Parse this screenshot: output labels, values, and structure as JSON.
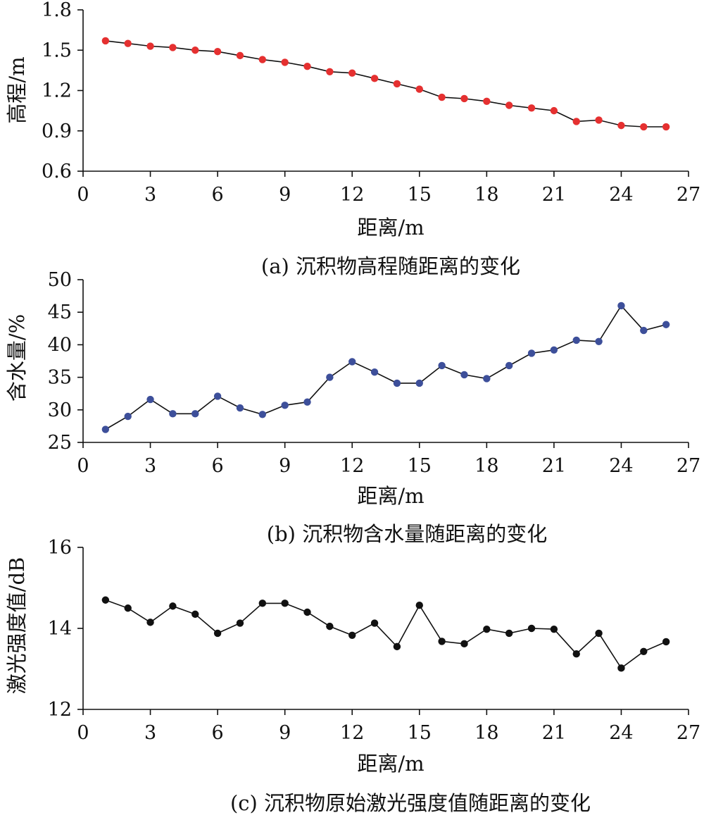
{
  "chart_data": [
    {
      "type": "line",
      "title": "",
      "caption": "(a) 沉积物高程随距离的变化",
      "xlabel": "距离/m",
      "ylabel": "高程/m",
      "xlim": [
        0,
        27
      ],
      "ylim": [
        0.6,
        1.8
      ],
      "x_ticks": [
        "0",
        "3",
        "6",
        "9",
        "12",
        "15",
        "18",
        "21",
        "24",
        "27"
      ],
      "y_ticks": [
        "0.6",
        "0.9",
        "1.2",
        "1.5",
        "1.8"
      ],
      "marker_color": "#e53030",
      "x": [
        1,
        2,
        3,
        4,
        5,
        6,
        7,
        8,
        9,
        10,
        11,
        12,
        13,
        14,
        15,
        16,
        17,
        18,
        19,
        20,
        21,
        22,
        23,
        24,
        25,
        26
      ],
      "values": [
        1.57,
        1.55,
        1.53,
        1.52,
        1.5,
        1.49,
        1.46,
        1.43,
        1.41,
        1.38,
        1.34,
        1.33,
        1.29,
        1.25,
        1.21,
        1.15,
        1.14,
        1.12,
        1.09,
        1.07,
        1.05,
        0.97,
        0.98,
        0.94,
        0.93,
        0.93
      ]
    },
    {
      "type": "line",
      "title": "",
      "caption": "(b) 沉积物含水量随距离的变化",
      "xlabel": "距离/m",
      "ylabel": "含水量/%",
      "xlim": [
        0,
        27
      ],
      "ylim": [
        25,
        50
      ],
      "x_ticks": [
        "0",
        "3",
        "6",
        "9",
        "12",
        "15",
        "18",
        "21",
        "24",
        "27"
      ],
      "y_ticks": [
        "25",
        "30",
        "35",
        "40",
        "45",
        "50"
      ],
      "marker_color": "#3d4f9a",
      "x": [
        1,
        2,
        3,
        4,
        5,
        6,
        7,
        8,
        9,
        10,
        11,
        12,
        13,
        14,
        15,
        16,
        17,
        18,
        19,
        20,
        21,
        22,
        23,
        24,
        25,
        26
      ],
      "values": [
        27.0,
        29.0,
        31.6,
        29.4,
        29.4,
        32.1,
        30.3,
        29.3,
        30.7,
        31.2,
        35.0,
        37.4,
        35.8,
        34.1,
        34.1,
        36.8,
        35.4,
        34.8,
        36.8,
        38.7,
        39.2,
        40.7,
        40.5,
        46.0,
        42.2,
        43.1
      ]
    },
    {
      "type": "line",
      "title": "",
      "caption": "(c) 沉积物原始激光强度值随距离的变化",
      "xlabel": "距离/m",
      "ylabel": "激光强度值/dB",
      "xlim": [
        0,
        27
      ],
      "ylim": [
        12,
        16
      ],
      "x_ticks": [
        "0",
        "3",
        "6",
        "9",
        "12",
        "15",
        "18",
        "21",
        "24",
        "27"
      ],
      "y_ticks": [
        "12",
        "14",
        "16"
      ],
      "marker_color": "#111111",
      "x": [
        1,
        2,
        3,
        4,
        5,
        6,
        7,
        8,
        9,
        10,
        11,
        12,
        13,
        14,
        15,
        16,
        17,
        18,
        19,
        20,
        21,
        22,
        23,
        24,
        25,
        26
      ],
      "values": [
        14.7,
        14.5,
        14.15,
        14.55,
        14.35,
        13.88,
        14.13,
        14.62,
        14.62,
        14.4,
        14.05,
        13.83,
        14.13,
        13.55,
        14.57,
        13.68,
        13.62,
        13.98,
        13.88,
        14.0,
        13.98,
        13.37,
        13.88,
        13.02,
        13.43,
        13.67
      ]
    }
  ]
}
